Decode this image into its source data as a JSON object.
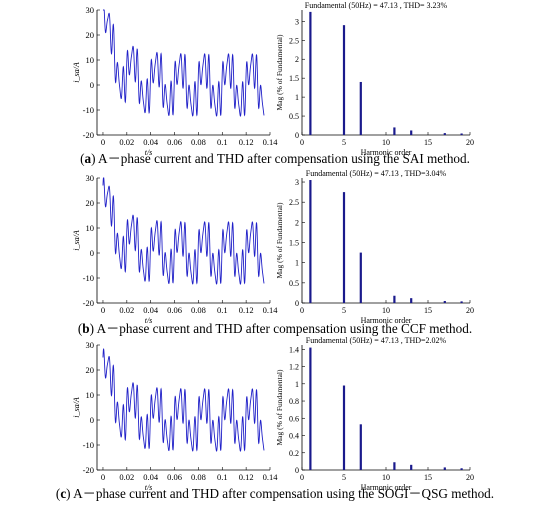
{
  "chart_data": [
    {
      "panel": "a",
      "caption": {
        "label": "a",
        "text": "A－phase current and THD after compensation using the SAI method."
      },
      "charts": [
        {
          "type": "line",
          "ylabel": "i_sa/A",
          "xlabel": "t/s",
          "xlim": [
            -0.005,
            0.14
          ],
          "ylim": [
            -20,
            30
          ],
          "xticks": [
            "0",
            "0.02",
            "0.04",
            "0.06",
            "0.08",
            "0.1",
            "0.12",
            "0.14"
          ],
          "yticks": [
            "-20",
            "-10",
            "0",
            "10",
            "20",
            "30"
          ],
          "series": [
            {
              "dc_start": 25,
              "decay": 0.012,
              "fundamental_amp": 8,
              "h5_amp": 6,
              "h7_amp": 3,
              "t_end": 0.135
            }
          ]
        },
        {
          "type": "bar",
          "title": "Fundamental (50Hz) = 47.13 , THD= 3.23%",
          "ylabel": "Mag (% of Fundamental)",
          "xlabel": "Harmonic order",
          "xlim": [
            0,
            20
          ],
          "ylim": [
            0,
            3.3
          ],
          "xticks": [
            "0",
            "5",
            "10",
            "15",
            "20"
          ],
          "yticks": [
            "0",
            "0.5",
            "1",
            "1.5",
            "2",
            "2.5",
            "3"
          ],
          "x": [
            1,
            5,
            7,
            11,
            13,
            17,
            19
          ],
          "values": [
            3.25,
            2.9,
            1.4,
            0.2,
            0.12,
            0.05,
            0.04
          ]
        }
      ]
    },
    {
      "panel": "b",
      "caption": {
        "label": "b",
        "text": "A－phase current and THD after compensation using the CCF method."
      },
      "charts": [
        {
          "type": "line",
          "ylabel": "i_sa/A",
          "xlabel": "t/s",
          "xlim": [
            -0.005,
            0.14
          ],
          "ylim": [
            -20,
            30
          ],
          "xticks": [
            "0",
            "0.02",
            "0.04",
            "0.06",
            "0.08",
            "0.1",
            "0.12",
            "0.14"
          ],
          "yticks": [
            "-20",
            "-10",
            "0",
            "10",
            "20",
            "30"
          ],
          "series": [
            {
              "dc_start": 22,
              "decay": 0.012,
              "fundamental_amp": 8,
              "h5_amp": 6,
              "h7_amp": 3,
              "t_end": 0.135
            }
          ]
        },
        {
          "type": "bar",
          "title": "Fundamental (50Hz) = 47.13 , THD=3.04%",
          "ylabel": "Mag (% of Fundamental)",
          "xlabel": "Harmonic order",
          "xlim": [
            0,
            20
          ],
          "ylim": [
            0,
            3.1
          ],
          "xticks": [
            "0",
            "5",
            "10",
            "15",
            "20"
          ],
          "yticks": [
            "0",
            "0.5",
            "1",
            "1.5",
            "2",
            "2.5",
            "3"
          ],
          "x": [
            1,
            5,
            7,
            11,
            13,
            17,
            19
          ],
          "values": [
            3.05,
            2.75,
            1.25,
            0.18,
            0.12,
            0.05,
            0.04
          ]
        }
      ]
    },
    {
      "panel": "c",
      "caption": {
        "label": "c",
        "text": "A－phase current and THD after compensation using the SOGI－QSG method."
      },
      "charts": [
        {
          "type": "line",
          "ylabel": "i_sa/A",
          "xlabel": "t/s",
          "xlim": [
            -0.005,
            0.14
          ],
          "ylim": [
            -20,
            30
          ],
          "xticks": [
            "0",
            "0.02",
            "0.04",
            "0.06",
            "0.08",
            "0.1",
            "0.12",
            "0.14"
          ],
          "yticks": [
            "-20",
            "-10",
            "0",
            "10",
            "20",
            "30"
          ],
          "series": [
            {
              "dc_start": 20,
              "decay": 0.012,
              "fundamental_amp": 8,
              "h5_amp": 6,
              "h7_amp": 3,
              "t_end": 0.135
            }
          ]
        },
        {
          "type": "bar",
          "title": "Fundamental (50Hz) = 47.13 , THD=2.02%",
          "ylabel": "Mag (% of Fundamental)",
          "xlabel": "Harmonic order",
          "xlim": [
            0,
            20
          ],
          "ylim": [
            0,
            1.45
          ],
          "xticks": [
            "0",
            "5",
            "10",
            "15",
            "20"
          ],
          "yticks": [
            "0",
            "0.2",
            "0.4",
            "0.6",
            "0.8",
            "1",
            "1.2",
            "1.4"
          ],
          "x": [
            1,
            5,
            7,
            11,
            13,
            17,
            19
          ],
          "values": [
            1.42,
            0.98,
            0.53,
            0.09,
            0.06,
            0.03,
            0.02
          ]
        }
      ]
    }
  ],
  "colors": {
    "line": "#2020c8",
    "bar": "#1a1a8c",
    "axis": "#000000"
  }
}
